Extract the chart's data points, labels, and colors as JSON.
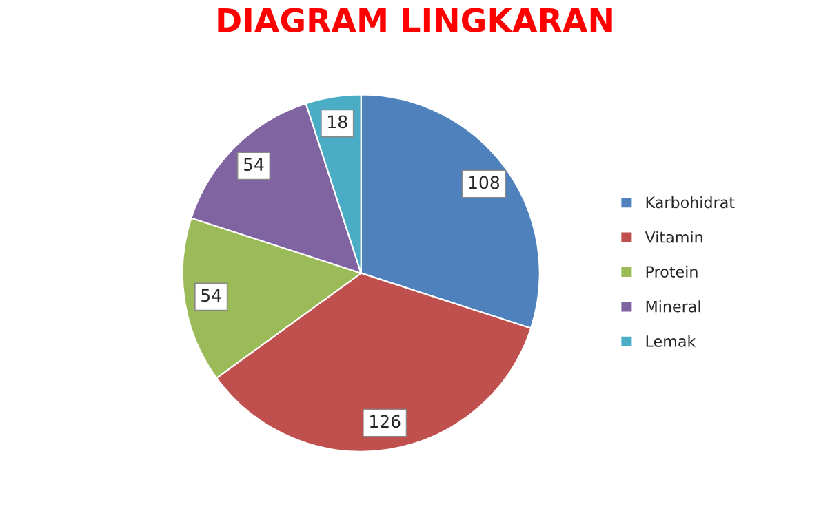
{
  "chart_data": {
    "type": "pie",
    "title": "DIAGRAM LINGKARAN",
    "categories": [
      "Karbohidrat",
      "Vitamin",
      "Protein",
      "Mineral",
      "Lemak"
    ],
    "values": [
      108,
      126,
      54,
      54,
      18
    ],
    "colors": [
      "#4f81bd",
      "#c0504d",
      "#9bbb59",
      "#8064a2",
      "#4bacc6"
    ],
    "data_labels": true,
    "legend": "right"
  }
}
